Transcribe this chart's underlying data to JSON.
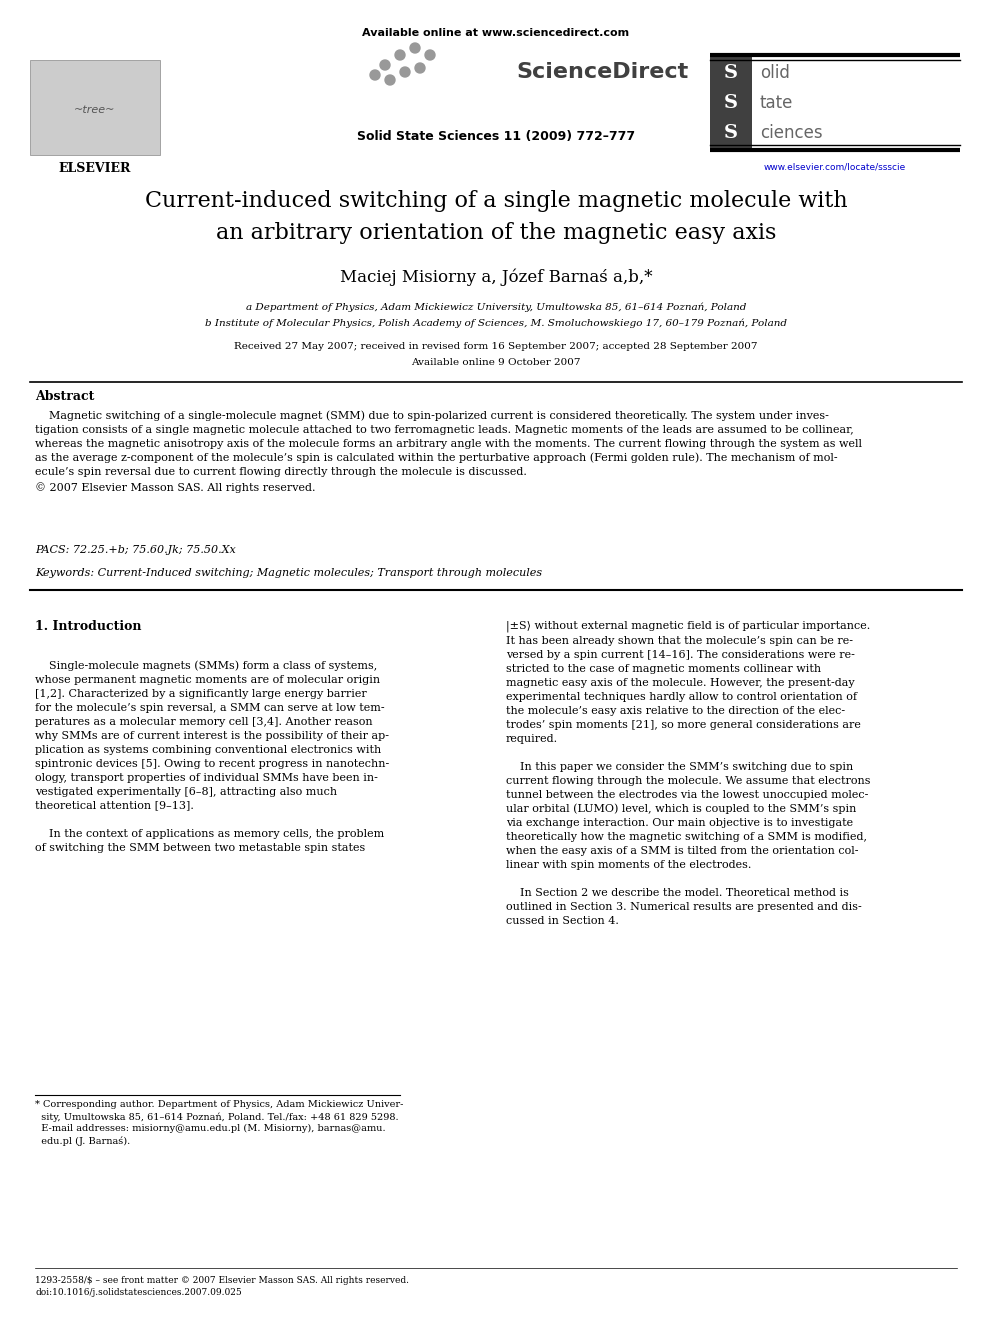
{
  "background_color": "#ffffff",
  "page_width": 9.92,
  "page_height": 13.23,
  "dpi": 100,
  "header": {
    "available_online_text": "Available online at www.sciencedirect.com",
    "sciencedirect_text": "ScienceDirect",
    "journal_info": "Solid State Sciences 11 (2009) 772–777",
    "elsevier_text": "ELSEVIER",
    "url": "www.elsevier.com/locate/ssscie"
  },
  "title_line1": "Current-induced switching of a single magnetic molecule with",
  "title_line2": "an arbitrary orientation of the magnetic easy axis",
  "authors": "Maciej Misiorny a, Józef Barnaś a,b,*",
  "affiliation_a": "a Department of Physics, Adam Mickiewicz University, Umultowska 85, 61–614 Poznań, Poland",
  "affiliation_b": "b Institute of Molecular Physics, Polish Academy of Sciences, M. Smoluchowskiego 17, 60–179 Poznań, Poland",
  "received_text": "Received 27 May 2007; received in revised form 16 September 2007; accepted 28 September 2007",
  "available_online": "Available online 9 October 2007",
  "abstract_title": "Abstract",
  "abstract_body": "    Magnetic switching of a single-molecule magnet (SMM) due to spin-polarized current is considered theoretically. The system under inves-\ntigation consists of a single magnetic molecule attached to two ferromagnetic leads. Magnetic moments of the leads are assumed to be collinear,\nwhereas the magnetic anisotropy axis of the molecule forms an arbitrary angle with the moments. The current flowing through the system as well\nas the average z-component of the molecule’s spin is calculated within the perturbative approach (Fermi golden rule). The mechanism of mol-\necule’s spin reversal due to current flowing directly through the molecule is discussed.\n© 2007 Elsevier Masson SAS. All rights reserved.",
  "pacs": "PACS: 72.25.+b; 75.60.Jk; 75.50.Xx",
  "keywords": "Keywords: Current-Induced switching; Magnetic molecules; Transport through molecules",
  "intro_heading": "1. Introduction",
  "intro_col1": "    Single-molecule magnets (SMMs) form a class of systems,\nwhose permanent magnetic moments are of molecular origin\n[1,2]. Characterized by a significantly large energy barrier\nfor the molecule’s spin reversal, a SMM can serve at low tem-\nperatures as a molecular memory cell [3,4]. Another reason\nwhy SMMs are of current interest is the possibility of their ap-\nplication as systems combining conventional electronics with\nspintronic devices [5]. Owing to recent progress in nanotechn-\nology, transport properties of individual SMMs have been in-\nvestigated experimentally [6–8], attracting also much\ntheoretical attention [9–13].\n\n    In the context of applications as memory cells, the problem\nof switching the SMM between two metastable spin states",
  "intro_col2": "|±S⟩ without external magnetic field is of particular importance.\nIt has been already shown that the molecule’s spin can be re-\nversed by a spin current [14–16]. The considerations were re-\nstricted to the case of magnetic moments collinear with\nmagnetic easy axis of the molecule. However, the present-day\nexperimental techniques hardly allow to control orientation of\nthe molecule’s easy axis relative to the direction of the elec-\ntrodes’ spin moments [21], so more general considerations are\nrequired.\n\n    In this paper we consider the SMM’s switching due to spin\ncurrent flowing through the molecule. We assume that electrons\ntunnel between the electrodes via the lowest unoccupied molec-\nular orbital (LUMO) level, which is coupled to the SMM’s spin\nvia exchange interaction. Our main objective is to investigate\ntheoretically how the magnetic switching of a SMM is modified,\nwhen the easy axis of a SMM is tilted from the orientation col-\nlinear with spin moments of the electrodes.\n\n    In Section 2 we describe the model. Theoretical method is\noutlined in Section 3. Numerical results are presented and dis-\ncussed in Section 4.",
  "footnote": "* Corresponding author. Department of Physics, Adam Mickiewicz Univer-\n  sity, Umultowska 85, 61–614 Poznań, Poland. Tel./fax: +48 61 829 5298.\n  E-mail addresses: misiorny@amu.edu.pl (M. Misiorny), barnas@amu.\n  edu.pl (J. Barnaś).",
  "copyright": "1293-2558/$ – see front matter © 2007 Elsevier Masson SAS. All rights reserved.\ndoi:10.1016/j.solidstatesciences.2007.09.025"
}
